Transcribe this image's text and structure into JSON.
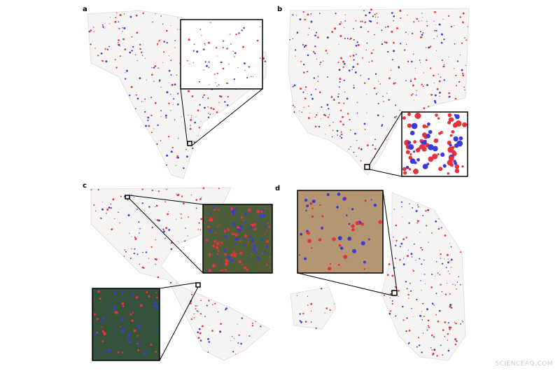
{
  "panels": [
    {
      "label": "a"
    },
    {
      "label": "b"
    },
    {
      "label": "c"
    },
    {
      "label": "d"
    }
  ],
  "watermark": "SCIENCEAQ.COM"
}
